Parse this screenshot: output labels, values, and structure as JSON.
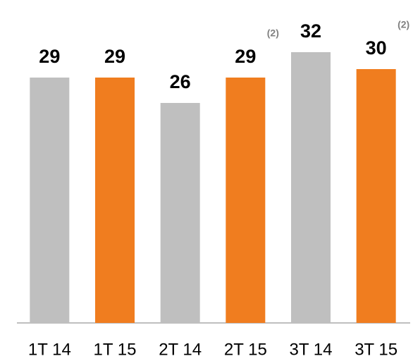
{
  "chart_data": {
    "type": "bar",
    "categories": [
      "1T 14",
      "1T 15",
      "2T 14",
      "2T 15",
      "3T 14",
      "3T 15"
    ],
    "values": [
      29,
      29,
      26,
      29,
      32,
      30
    ],
    "colors": [
      "#bfbfbf",
      "#f07d1f",
      "#bfbfbf",
      "#f07d1f",
      "#bfbfbf",
      "#f07d1f"
    ],
    "value_notes": [
      null,
      null,
      null,
      "(2)",
      null,
      "(2)"
    ]
  }
}
